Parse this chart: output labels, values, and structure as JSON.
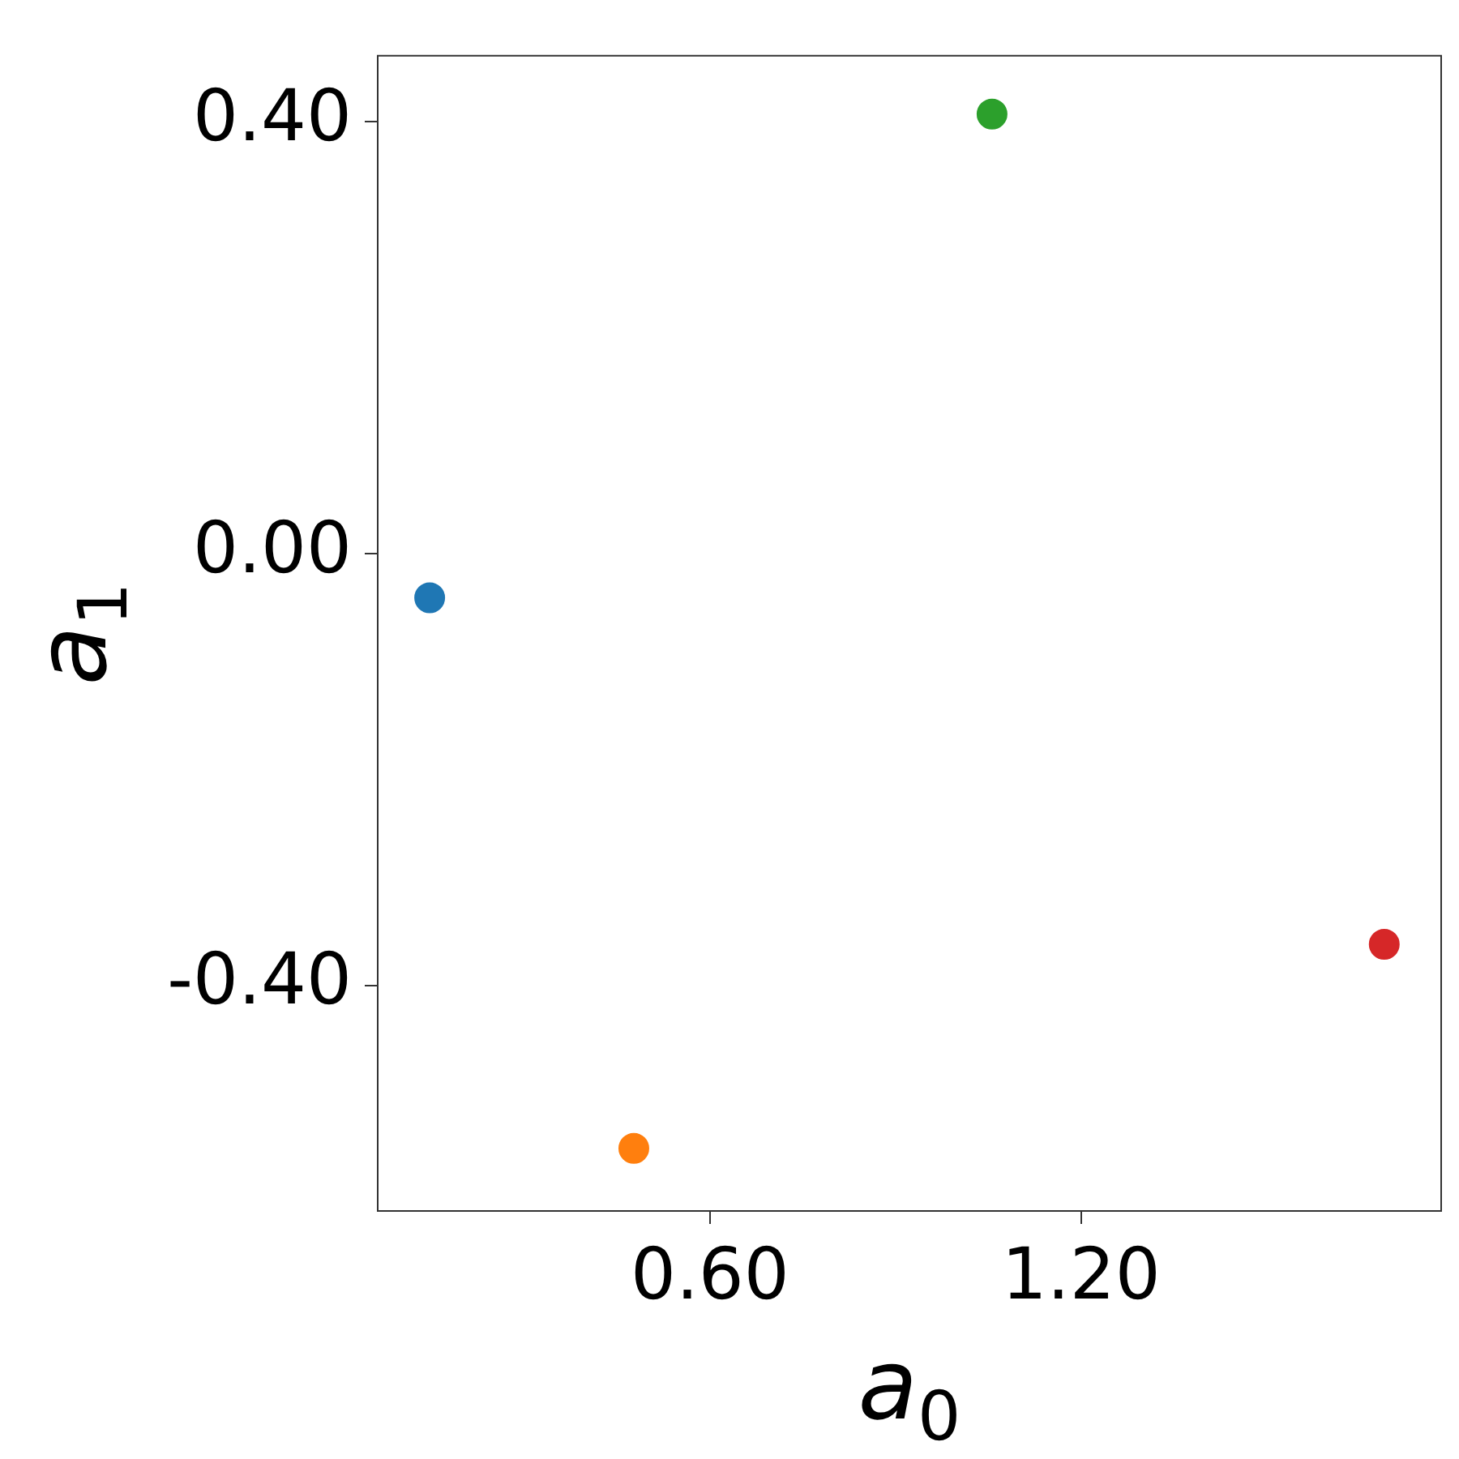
{
  "chart_data": {
    "type": "scatter",
    "xlabel": "a$_{0}$",
    "ylabel": "a$_{1}$",
    "marker": "circle",
    "series": [
      {
        "color": "#1f77b4",
        "x": [
          0.147
        ],
        "values": [
          -0.041
        ]
      },
      {
        "color": "#ff7f0e",
        "x": [
          0.477
        ],
        "values": [
          -0.551
        ]
      },
      {
        "color": "#2ca02c",
        "x": [
          1.056
        ],
        "values": [
          0.407
        ]
      },
      {
        "color": "#d62728",
        "x": [
          1.69
        ],
        "values": [
          -0.362
        ]
      }
    ],
    "xlim": [
      0.063,
      1.782
    ],
    "ylim": [
      -0.609,
      0.461
    ],
    "xticks": [
      {
        "value": 0.6,
        "label": "0.60"
      },
      {
        "value": 1.2,
        "label": "1.20"
      }
    ],
    "yticks": [
      {
        "value": -0.4,
        "label": "-0.40"
      },
      {
        "value": 0,
        "label": "0.00"
      },
      {
        "value": 0.4,
        "label": "0.40"
      }
    ]
  }
}
